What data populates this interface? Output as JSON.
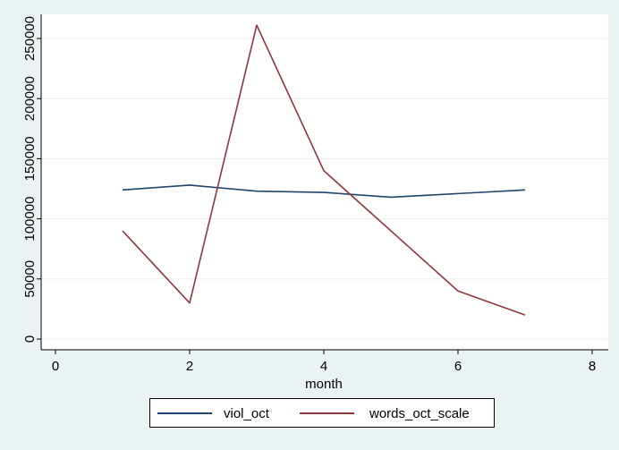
{
  "chart_data": {
    "type": "line",
    "xlabel": "month",
    "ylabel": "",
    "xlim": [
      0,
      8
    ],
    "ylim": [
      0,
      260000
    ],
    "xticks": [
      0,
      2,
      4,
      6,
      8
    ],
    "yticks": [
      0,
      50000,
      100000,
      150000,
      200000,
      250000
    ],
    "xtick_labels": [
      "0",
      "2",
      "4",
      "6",
      "8"
    ],
    "ytick_labels": [
      "0",
      "50000",
      "100000",
      "150000",
      "200000",
      "250000"
    ],
    "grid": true,
    "legend_position": "bottom",
    "series": [
      {
        "name": "viol_oct",
        "color": "#1a476f",
        "x": [
          1,
          2,
          3,
          4,
          5,
          6,
          7
        ],
        "y": [
          124000,
          128000,
          123000,
          122000,
          118000,
          121000,
          124000
        ]
      },
      {
        "name": "words_oct_scale",
        "color": "#90353b",
        "x": [
          1,
          2,
          3,
          4,
          5,
          6,
          7
        ],
        "y": [
          90000,
          30000,
          261000,
          140000,
          90000,
          40000,
          20000
        ]
      }
    ]
  }
}
